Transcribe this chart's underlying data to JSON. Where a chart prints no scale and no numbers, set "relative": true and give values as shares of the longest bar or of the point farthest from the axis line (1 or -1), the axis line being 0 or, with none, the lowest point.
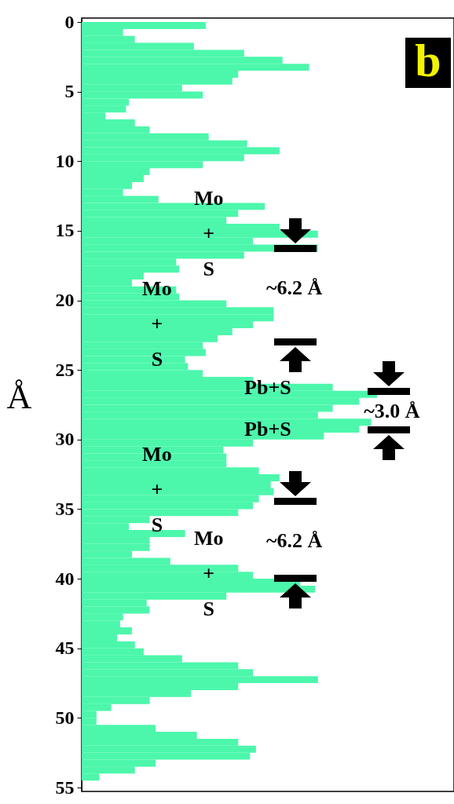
{
  "chart_data": {
    "type": "bar",
    "orientation": "horizontal",
    "relative": true,
    "title": "b",
    "ylabel": "Å",
    "color": "#4cf7ab",
    "ylim": [
      55,
      0
    ],
    "yticks": [
      0,
      5,
      10,
      15,
      20,
      25,
      30,
      35,
      40,
      45,
      50,
      55
    ],
    "annotations": [
      "Mo\n+\nS",
      "Mo\n+\nS",
      "Pb+S",
      "Pb+S",
      "Mo\n+\nS",
      "Mo\n+\nS",
      "~6.2 Å",
      "~6.2 Å",
      "~3.0 Å"
    ],
    "x": [
      0.25,
      0.75,
      1.25,
      1.75,
      2.25,
      2.75,
      3.25,
      3.75,
      4.25,
      4.75,
      5.25,
      5.75,
      6.25,
      6.75,
      7.25,
      7.75,
      8.25,
      8.75,
      9.25,
      9.75,
      10.25,
      10.75,
      11.25,
      11.75,
      12.25,
      12.75,
      13.25,
      13.75,
      14.25,
      14.75,
      15.25,
      15.75,
      16.25,
      16.75,
      17.25,
      17.75,
      18.25,
      18.75,
      19.25,
      19.75,
      20.25,
      20.75,
      21.25,
      21.75,
      22.25,
      22.75,
      23.25,
      23.75,
      24.25,
      24.75,
      25.25,
      25.75,
      26.25,
      26.75,
      27.25,
      27.75,
      28.25,
      28.75,
      29.25,
      29.75,
      30.25,
      30.75,
      31.25,
      31.75,
      32.25,
      32.75,
      33.25,
      33.75,
      34.25,
      34.75,
      35.25,
      35.75,
      36.25,
      36.75,
      37.25,
      37.75,
      38.25,
      38.75,
      39.25,
      39.75,
      40.25,
      40.75,
      41.25,
      41.75,
      42.25,
      42.75,
      43.25,
      43.75,
      44.25,
      44.75,
      45.25,
      45.75,
      46.25,
      46.75,
      47.25,
      47.75,
      48.25,
      48.75,
      49.25,
      49.75,
      50.25,
      50.75,
      51.25,
      51.75,
      52.25,
      52.75,
      53.25,
      53.75,
      54.25
    ],
    "values": [
      0.42,
      0.14,
      0.18,
      0.38,
      0.55,
      0.68,
      0.77,
      0.53,
      0.51,
      0.34,
      0.41,
      0.16,
      0.15,
      0.08,
      0.18,
      0.23,
      0.43,
      0.56,
      0.67,
      0.55,
      0.41,
      0.23,
      0.21,
      0.17,
      0.14,
      0.26,
      0.62,
      0.53,
      0.49,
      0.67,
      0.8,
      0.58,
      0.8,
      0.55,
      0.32,
      0.33,
      0.21,
      0.17,
      0.32,
      0.33,
      0.49,
      0.65,
      0.65,
      0.58,
      0.51,
      0.46,
      0.41,
      0.42,
      0.35,
      0.36,
      0.41,
      0.58,
      0.85,
      1.0,
      0.94,
      0.85,
      0.8,
      0.98,
      0.94,
      0.82,
      0.58,
      0.48,
      0.49,
      0.49,
      0.6,
      0.67,
      0.64,
      0.65,
      0.6,
      0.58,
      0.53,
      0.23,
      0.16,
      0.35,
      0.23,
      0.23,
      0.17,
      0.3,
      0.53,
      0.58,
      0.74,
      0.79,
      0.49,
      0.22,
      0.23,
      0.14,
      0.13,
      0.17,
      0.12,
      0.18,
      0.21,
      0.34,
      0.53,
      0.58,
      0.8,
      0.53,
      0.37,
      0.23,
      0.1,
      0.05,
      0.05,
      0.25,
      0.39,
      0.53,
      0.59,
      0.57,
      0.25,
      0.18,
      0.06
    ]
  }
}
